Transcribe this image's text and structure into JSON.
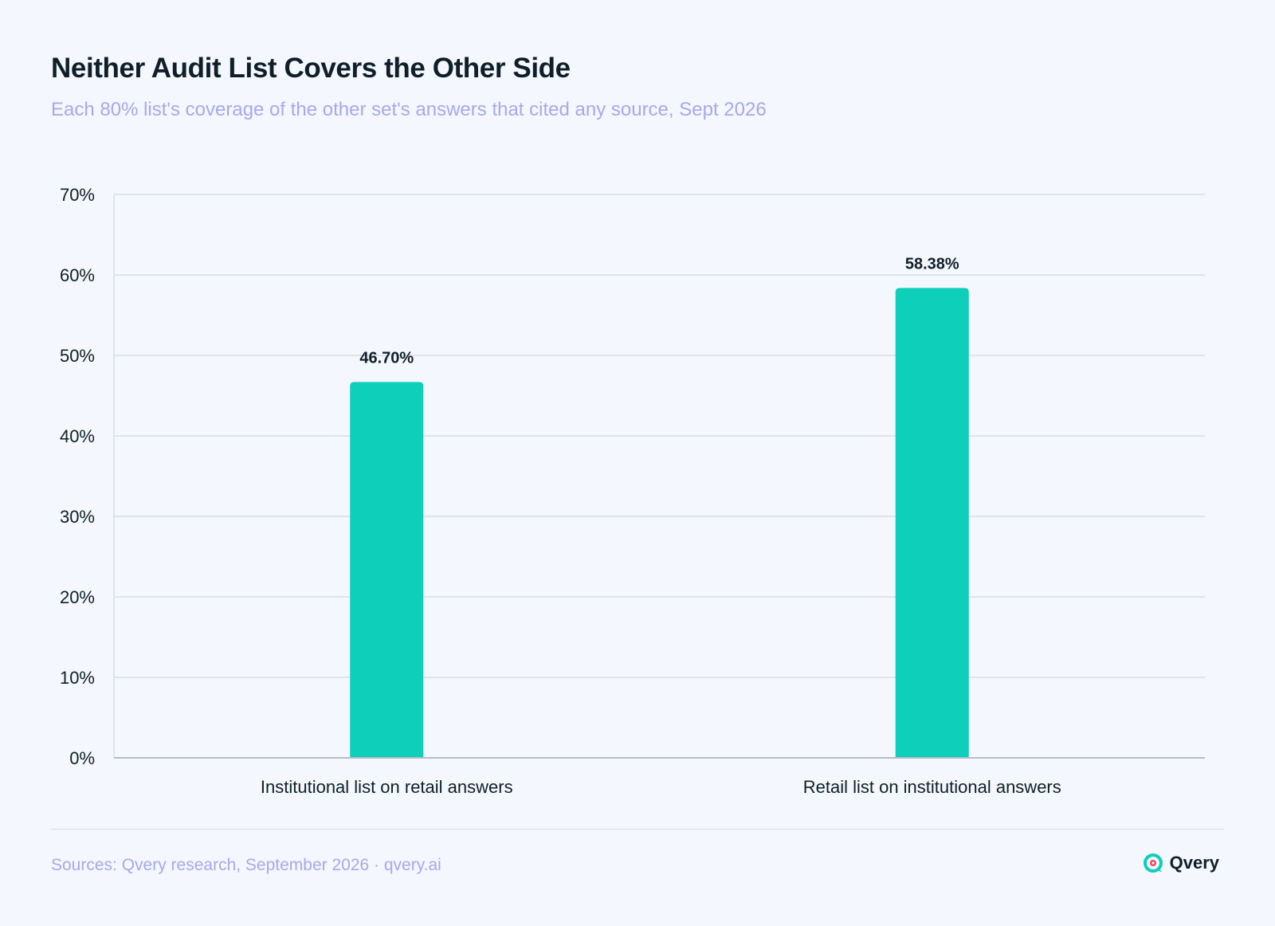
{
  "header": {
    "title": "Neither Audit List Covers the Other Side",
    "subtitle": "Each 80% list's coverage of the other set's answers that cited any source, Sept 2026"
  },
  "footer": {
    "source": "Sources: Qvery research, September 2026 · qvery.ai",
    "brand": "Qvery"
  },
  "colors": {
    "bar": "#0dcfba",
    "grid": "#d8dde6",
    "axis": "#b7bcc6",
    "text": "#0f1f2a",
    "accent": "#a6a9ea",
    "logo": "#0dcfba",
    "logo_dot": "#e8445a"
  },
  "chart_data": {
    "type": "bar",
    "categories": [
      "Institutional list on retail answers",
      "Retail list on institutional answers"
    ],
    "values": [
      46.7,
      58.38
    ],
    "value_labels": [
      "46.70%",
      "58.38%"
    ],
    "ylim": [
      0,
      70
    ],
    "yticks": [
      0,
      10,
      20,
      30,
      40,
      50,
      60,
      70
    ],
    "ytick_labels": [
      "0%",
      "10%",
      "20%",
      "30%",
      "40%",
      "50%",
      "60%",
      "70%"
    ],
    "grid": true,
    "legend": false
  }
}
